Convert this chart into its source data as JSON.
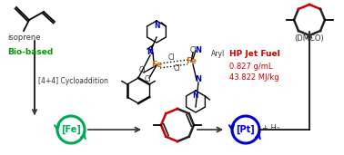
{
  "bg_color": "#ffffff",
  "isoprene_label": "isoprene",
  "bio_based_label": "Bio-based",
  "bio_based_color": "#009900",
  "cycloaddition_label": "[4+4] Cycloaddition",
  "fe_label": "[Fe]",
  "fe_color": "#00aa55",
  "pt_label": "[Pt]",
  "pt_color": "#0000cc",
  "h2_label": "+ H₂",
  "dmco_label": "(DMCO)",
  "hp_fuel_label": "HP Jet Fuel",
  "fuel_density": "0.827 g/mL",
  "fuel_energy": "43.822 MJ/kg",
  "fuel_color": "#cc0000",
  "arrow_color": "#333333",
  "ring_red": "#cc0000",
  "ring_black": "#222222",
  "n_color": "#0000bb",
  "fe_metal_color": "#cc6600",
  "aryl_label": "Aryl",
  "cl_label": "Cl"
}
